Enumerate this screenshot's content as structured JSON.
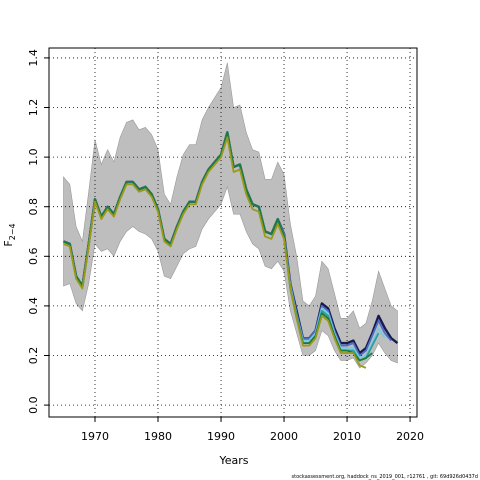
{
  "chart_data": {
    "type": "retro-line",
    "xlabel": "Years",
    "ylabel": "F",
    "ylabel_subscript": "2−4",
    "footnote": "stockassessment.org, haddock_ns_2019_001, r12761 , git: 69d926d0437d",
    "x": [
      1965,
      1966,
      1967,
      1968,
      1969,
      1970,
      1971,
      1972,
      1973,
      1974,
      1975,
      1976,
      1977,
      1978,
      1979,
      1980,
      1981,
      1982,
      1983,
      1984,
      1985,
      1986,
      1987,
      1988,
      1989,
      1990,
      1991,
      1992,
      1993,
      1994,
      1995,
      1996,
      1997,
      1998,
      1999,
      2000,
      2001,
      2002,
      2003,
      2004,
      2005,
      2006,
      2007,
      2008,
      2009,
      2010,
      2011,
      2012,
      2013,
      2014,
      2015,
      2016,
      2017,
      2018
    ],
    "band": {
      "color": "#bebebe",
      "upper": [
        0.92,
        0.89,
        0.72,
        0.66,
        0.86,
        1.07,
        0.97,
        1.03,
        0.98,
        1.08,
        1.14,
        1.15,
        1.11,
        1.12,
        1.09,
        1.03,
        0.85,
        0.81,
        0.92,
        1.01,
        1.05,
        1.05,
        1.15,
        1.2,
        1.24,
        1.28,
        1.38,
        1.2,
        1.21,
        1.1,
        1.03,
        1.02,
        0.91,
        0.91,
        0.98,
        0.93,
        0.73,
        0.6,
        0.42,
        0.4,
        0.44,
        0.58,
        0.55,
        0.45,
        0.35,
        0.35,
        0.38,
        0.31,
        0.33,
        0.42,
        0.54,
        0.47,
        0.4,
        0.38
      ],
      "lower": [
        0.48,
        0.49,
        0.41,
        0.38,
        0.49,
        0.65,
        0.62,
        0.63,
        0.6,
        0.66,
        0.7,
        0.72,
        0.7,
        0.69,
        0.67,
        0.62,
        0.52,
        0.51,
        0.56,
        0.61,
        0.63,
        0.64,
        0.71,
        0.75,
        0.78,
        0.81,
        0.88,
        0.77,
        0.77,
        0.7,
        0.65,
        0.63,
        0.56,
        0.55,
        0.58,
        0.54,
        0.38,
        0.29,
        0.2,
        0.2,
        0.22,
        0.3,
        0.28,
        0.22,
        0.18,
        0.18,
        0.19,
        0.15,
        0.17,
        0.2,
        0.25,
        0.21,
        0.18,
        0.17
      ]
    },
    "series": [
      {
        "color": "#1a1a4e",
        "values": [
          0.66,
          0.65,
          0.52,
          0.48,
          0.65,
          0.83,
          0.76,
          0.8,
          0.77,
          0.84,
          0.9,
          0.9,
          0.87,
          0.88,
          0.85,
          0.79,
          0.67,
          0.65,
          0.72,
          0.78,
          0.82,
          0.82,
          0.9,
          0.95,
          0.98,
          1.01,
          1.1,
          0.96,
          0.97,
          0.87,
          0.81,
          0.8,
          0.7,
          0.69,
          0.75,
          0.69,
          0.49,
          0.38,
          0.27,
          0.27,
          0.3,
          0.41,
          0.39,
          0.31,
          0.25,
          0.25,
          0.26,
          0.21,
          0.23,
          0.29,
          0.36,
          0.31,
          0.27,
          0.25
        ]
      },
      {
        "color": "#4a6fc4",
        "values": [
          0.66,
          0.65,
          0.52,
          0.48,
          0.65,
          0.83,
          0.76,
          0.8,
          0.77,
          0.84,
          0.9,
          0.9,
          0.87,
          0.88,
          0.85,
          0.79,
          0.67,
          0.65,
          0.72,
          0.78,
          0.82,
          0.82,
          0.9,
          0.95,
          0.98,
          1.01,
          1.1,
          0.96,
          0.97,
          0.87,
          0.81,
          0.8,
          0.7,
          0.69,
          0.75,
          0.69,
          0.49,
          0.37,
          0.27,
          0.27,
          0.3,
          0.4,
          0.38,
          0.3,
          0.24,
          0.24,
          0.25,
          0.2,
          0.22,
          0.28,
          0.34,
          0.29,
          0.26,
          null
        ]
      },
      {
        "color": "#7ec8e3",
        "values": [
          0.66,
          0.65,
          0.52,
          0.48,
          0.65,
          0.83,
          0.76,
          0.8,
          0.77,
          0.84,
          0.9,
          0.9,
          0.87,
          0.88,
          0.85,
          0.79,
          0.67,
          0.65,
          0.72,
          0.78,
          0.82,
          0.82,
          0.9,
          0.95,
          0.98,
          1.01,
          1.1,
          0.96,
          0.97,
          0.87,
          0.81,
          0.8,
          0.7,
          0.69,
          0.75,
          0.68,
          0.48,
          0.36,
          0.26,
          0.26,
          0.29,
          0.39,
          0.37,
          0.29,
          0.23,
          0.23,
          0.23,
          0.19,
          0.2,
          0.25,
          0.31,
          0.27,
          null,
          null
        ]
      },
      {
        "color": "#2aa198",
        "values": [
          0.66,
          0.65,
          0.52,
          0.48,
          0.65,
          0.83,
          0.76,
          0.8,
          0.77,
          0.84,
          0.9,
          0.9,
          0.87,
          0.88,
          0.85,
          0.79,
          0.67,
          0.65,
          0.72,
          0.78,
          0.82,
          0.82,
          0.9,
          0.95,
          0.98,
          1.01,
          1.1,
          0.96,
          0.97,
          0.87,
          0.81,
          0.8,
          0.7,
          0.69,
          0.75,
          0.68,
          0.47,
          0.36,
          0.25,
          0.25,
          0.28,
          0.38,
          0.36,
          0.28,
          0.22,
          0.22,
          0.22,
          0.18,
          0.19,
          0.24,
          0.29,
          null,
          null,
          null
        ]
      },
      {
        "color": "#1b7a3e",
        "values": [
          0.66,
          0.65,
          0.52,
          0.48,
          0.65,
          0.83,
          0.76,
          0.8,
          0.77,
          0.84,
          0.9,
          0.9,
          0.87,
          0.88,
          0.85,
          0.79,
          0.67,
          0.65,
          0.72,
          0.78,
          0.82,
          0.82,
          0.9,
          0.95,
          0.98,
          1.01,
          1.1,
          0.96,
          0.97,
          0.87,
          0.81,
          0.8,
          0.7,
          0.69,
          0.75,
          0.68,
          0.47,
          0.35,
          0.25,
          0.25,
          0.28,
          0.37,
          0.35,
          0.28,
          0.22,
          0.22,
          0.21,
          0.18,
          0.19,
          0.21,
          null,
          null,
          null,
          null
        ]
      },
      {
        "color": "#9a9a1a",
        "values": [
          0.65,
          0.64,
          0.51,
          0.47,
          0.64,
          0.82,
          0.75,
          0.79,
          0.76,
          0.83,
          0.89,
          0.89,
          0.86,
          0.87,
          0.84,
          0.78,
          0.66,
          0.64,
          0.71,
          0.77,
          0.81,
          0.81,
          0.89,
          0.94,
          0.97,
          1.0,
          1.08,
          0.94,
          0.95,
          0.85,
          0.79,
          0.78,
          0.68,
          0.67,
          0.73,
          0.67,
          0.47,
          0.35,
          0.24,
          0.24,
          0.27,
          0.36,
          0.34,
          0.27,
          0.21,
          0.21,
          0.21,
          0.16,
          0.15,
          null,
          null,
          null,
          null,
          null
        ]
      }
    ],
    "xlim": [
      1962.7,
      2021.1
    ],
    "ylim": [
      -0.048,
      1.44
    ],
    "xticks": [
      1970,
      1980,
      1990,
      2000,
      2010,
      2020
    ],
    "yticks": [
      {
        "value": 0,
        "label": "0.0"
      },
      0.2,
      0.4,
      0.6,
      0.8,
      {
        "value": 1,
        "label": "1.0"
      },
      1.2,
      1.4
    ],
    "grid": true
  }
}
